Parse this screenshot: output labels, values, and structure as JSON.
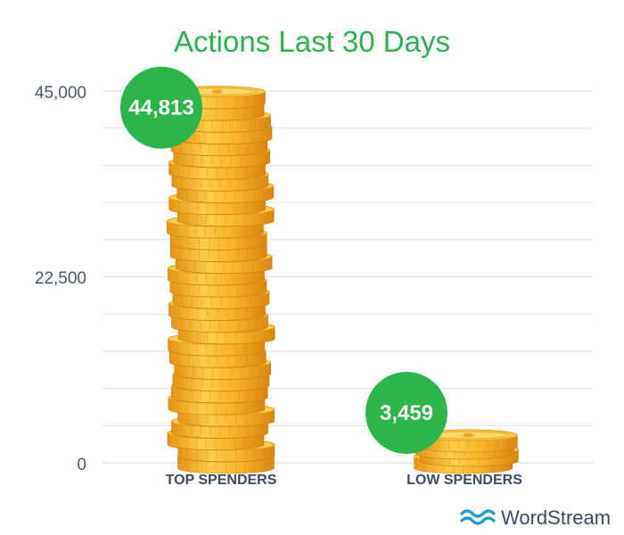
{
  "chart_data": {
    "type": "bar",
    "title": "Actions Last 30 Days",
    "categories": [
      "TOP SPENDERS",
      "LOW SPENDERS"
    ],
    "values": [
      44813,
      3459
    ],
    "value_labels": [
      "44,813",
      "3,459"
    ],
    "ylim": [
      0,
      45000
    ],
    "yticks": [
      0,
      22500,
      45000
    ],
    "ytick_labels": [
      "0",
      "22,500",
      "45,000"
    ],
    "grid": true,
    "xlabel": "",
    "ylabel": "",
    "mark_style": "stacked-gold-coins"
  },
  "colors": {
    "title": "#2ab24a",
    "badge": "#2cb54a",
    "coin_light": "#ffd35a",
    "coin_mid": "#f9b52a",
    "coin_dark": "#e08e12",
    "grid": "#dde1e7",
    "axis_text": "#4a5570",
    "brand": "#1e9ad6"
  },
  "brand": {
    "name": "WordStream",
    "icon": "wave-logo-icon"
  }
}
